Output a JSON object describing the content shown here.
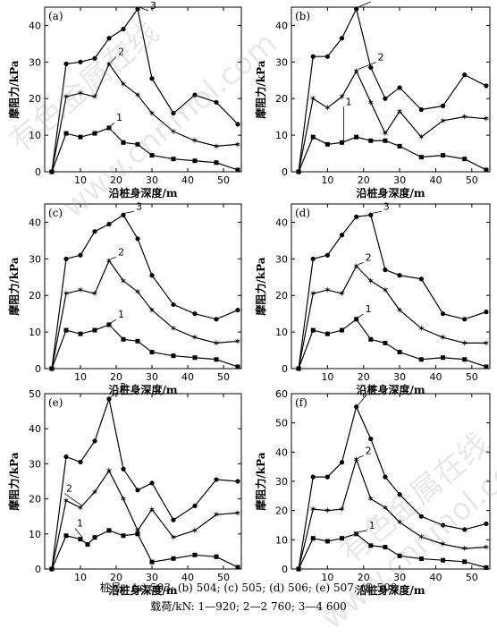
{
  "caption": {
    "pile_line": "桩号：(a) 503; (b) 504; (c) 505; (d) 506; (e) 507; (f) 508",
    "load_line": "载荷/kN: 1—920; 2—2 760; 3—4 600"
  },
  "watermark": {
    "cn": "有色金属在线",
    "en": "www.cnnmol.com"
  },
  "chart_data": [
    {
      "type": "line",
      "panel_label": "(a)",
      "xlabel": "沿桩身深度/m",
      "ylabel": "摩阻力/kPa",
      "xlim": [
        0,
        55
      ],
      "ylim": [
        0,
        45
      ],
      "xticks": [
        10,
        20,
        30,
        40,
        50
      ],
      "yticks": [
        0,
        10,
        20,
        30,
        40
      ],
      "series": [
        {
          "name": "1",
          "x": [
            2,
            6,
            10,
            14,
            18,
            22,
            26,
            30,
            36,
            42,
            48,
            54
          ],
          "y": [
            0,
            10.5,
            9.5,
            10.5,
            12,
            8,
            7.5,
            4.5,
            3.5,
            3,
            2.5,
            0.5
          ]
        },
        {
          "name": "2",
          "x": [
            2,
            6,
            10,
            14,
            18,
            22,
            26,
            30,
            36,
            42,
            48,
            54
          ],
          "y": [
            0,
            20.5,
            21.5,
            20.5,
            29.5,
            24,
            21,
            16,
            11,
            8.5,
            7,
            7.5
          ]
        },
        {
          "name": "3",
          "x": [
            2,
            6,
            10,
            14,
            18,
            22,
            26,
            30,
            36,
            42,
            48,
            54
          ],
          "y": [
            0,
            29.5,
            30,
            31,
            36.5,
            39,
            44.5,
            25.5,
            16,
            21,
            19,
            13
          ]
        }
      ]
    },
    {
      "type": "line",
      "panel_label": "(b)",
      "xlabel": "沿桩身深度/m",
      "ylabel": "摩阻力/kPa",
      "xlim": [
        0,
        55
      ],
      "ylim": [
        0,
        45
      ],
      "xticks": [
        10,
        20,
        30,
        40,
        50
      ],
      "yticks": [
        0,
        10,
        20,
        30,
        40
      ],
      "series": [
        {
          "name": "1",
          "x": [
            2,
            6,
            10,
            14,
            18,
            22,
            26,
            30,
            36,
            42,
            48,
            54
          ],
          "y": [
            0,
            9.5,
            7.5,
            8,
            9.5,
            8.5,
            8.5,
            7,
            4,
            4.5,
            3.5,
            0.5
          ]
        },
        {
          "name": "2",
          "x": [
            2,
            6,
            10,
            14,
            18,
            22,
            26,
            30,
            36,
            42,
            48,
            54
          ],
          "y": [
            0,
            20,
            17.5,
            20.5,
            27.5,
            19,
            10.5,
            16.5,
            9.5,
            14,
            15,
            14.5
          ]
        },
        {
          "name": "3",
          "x": [
            2,
            6,
            10,
            14,
            18,
            22,
            26,
            30,
            36,
            42,
            48,
            54
          ],
          "y": [
            0,
            31.5,
            31.5,
            36.5,
            44.5,
            28.5,
            20,
            23,
            17,
            18,
            26.5,
            23.5
          ]
        }
      ]
    },
    {
      "type": "line",
      "panel_label": "(c)",
      "xlabel": "沿桩身深度/m",
      "ylabel": "摩阻力/kPa",
      "xlim": [
        0,
        55
      ],
      "ylim": [
        0,
        45
      ],
      "xticks": [
        10,
        20,
        30,
        40,
        50
      ],
      "yticks": [
        0,
        10,
        20,
        30,
        40
      ],
      "series": [
        {
          "name": "1",
          "x": [
            2,
            6,
            10,
            14,
            18,
            22,
            26,
            30,
            36,
            42,
            48,
            54
          ],
          "y": [
            0,
            10.5,
            9.5,
            10.5,
            12,
            8,
            7.5,
            4.5,
            3.5,
            3,
            2.5,
            0.5
          ]
        },
        {
          "name": "2",
          "x": [
            2,
            6,
            10,
            14,
            18,
            22,
            26,
            30,
            36,
            42,
            48,
            54
          ],
          "y": [
            0,
            20.5,
            21.5,
            20.5,
            29.5,
            24,
            21,
            16,
            11,
            8.5,
            7,
            7.5
          ]
        },
        {
          "name": "3",
          "x": [
            2,
            6,
            10,
            14,
            18,
            22,
            26,
            30,
            36,
            42,
            48,
            54
          ],
          "y": [
            0,
            30,
            31,
            37.5,
            39.5,
            42,
            35.5,
            25.5,
            17.5,
            15,
            13.5,
            16
          ]
        }
      ]
    },
    {
      "type": "line",
      "panel_label": "(d)",
      "xlabel": "沿桩身深度/m",
      "ylabel": "摩阻力/kPa",
      "xlim": [
        0,
        55
      ],
      "ylim": [
        0,
        45
      ],
      "xticks": [
        10,
        20,
        30,
        40,
        50
      ],
      "yticks": [
        0,
        10,
        20,
        30,
        40
      ],
      "series": [
        {
          "name": "1",
          "x": [
            2,
            6,
            10,
            14,
            18,
            22,
            26,
            30,
            36,
            42,
            48,
            54
          ],
          "y": [
            0,
            10.5,
            9.5,
            10.5,
            13.5,
            8,
            7,
            4.5,
            2.5,
            3,
            2.5,
            0.5
          ]
        },
        {
          "name": "2",
          "x": [
            2,
            6,
            10,
            14,
            18,
            22,
            26,
            30,
            36,
            42,
            48,
            54
          ],
          "y": [
            0,
            20.5,
            21.5,
            20.5,
            28,
            24,
            21.5,
            16,
            11,
            8.5,
            7,
            7
          ]
        },
        {
          "name": "3",
          "x": [
            2,
            6,
            10,
            14,
            18,
            22,
            26,
            30,
            36,
            42,
            48,
            54
          ],
          "y": [
            0,
            30,
            31,
            36.5,
            41.5,
            42,
            27,
            25.5,
            24.5,
            15,
            13.5,
            15.5
          ]
        }
      ]
    },
    {
      "type": "line",
      "panel_label": "(e)",
      "xlabel": "沿桩身深度/m",
      "ylabel": "摩阻力/kPa",
      "xlim": [
        0,
        55
      ],
      "ylim": [
        0,
        50
      ],
      "xticks": [
        10,
        20,
        30,
        40,
        50
      ],
      "yticks": [
        0,
        10,
        20,
        30,
        40,
        50
      ],
      "series": [
        {
          "name": "1",
          "x": [
            2,
            6,
            10,
            12,
            14,
            18,
            22,
            26,
            30,
            36,
            42,
            48,
            54
          ],
          "y": [
            0,
            9.5,
            8.5,
            7,
            9,
            11,
            9.5,
            10,
            2,
            3,
            4,
            3.5,
            0.5
          ]
        },
        {
          "name": "2",
          "x": [
            2,
            6,
            10,
            14,
            18,
            22,
            26,
            30,
            36,
            42,
            48,
            54
          ],
          "y": [
            0,
            19.5,
            17.5,
            22,
            28,
            20,
            11,
            17,
            9,
            11,
            15.5,
            16
          ]
        },
        {
          "name": "3",
          "x": [
            2,
            6,
            10,
            14,
            18,
            22,
            26,
            30,
            36,
            42,
            48,
            54
          ],
          "y": [
            0,
            32,
            30.5,
            36.5,
            48.5,
            28.5,
            22.5,
            24.5,
            14,
            18,
            25.5,
            25
          ]
        }
      ]
    },
    {
      "type": "line",
      "panel_label": "(f)",
      "xlabel": "沿桩身深度/m",
      "ylabel": "摩阻力/kPa",
      "xlim": [
        0,
        55
      ],
      "ylim": [
        0,
        60
      ],
      "xticks": [
        10,
        20,
        30,
        40,
        50
      ],
      "yticks": [
        0,
        10,
        20,
        30,
        40,
        50,
        60
      ],
      "series": [
        {
          "name": "1",
          "x": [
            2,
            6,
            10,
            14,
            18,
            22,
            26,
            30,
            36,
            42,
            48,
            54
          ],
          "y": [
            0,
            10.5,
            9.5,
            10.5,
            12,
            8,
            7.5,
            4.5,
            3.5,
            3,
            2.5,
            0.5
          ]
        },
        {
          "name": "2",
          "x": [
            2,
            6,
            10,
            14,
            18,
            22,
            26,
            30,
            36,
            42,
            48,
            54
          ],
          "y": [
            0,
            20.5,
            20,
            20.5,
            37.5,
            24,
            21,
            16,
            11,
            8.5,
            7,
            7.5
          ]
        },
        {
          "name": "3",
          "x": [
            2,
            6,
            10,
            14,
            18,
            22,
            26,
            30,
            36,
            42,
            48,
            54
          ],
          "y": [
            0,
            31.5,
            31.5,
            36.5,
            55.5,
            44.5,
            31.5,
            25.5,
            18,
            15,
            13.5,
            15.5
          ]
        }
      ]
    }
  ]
}
